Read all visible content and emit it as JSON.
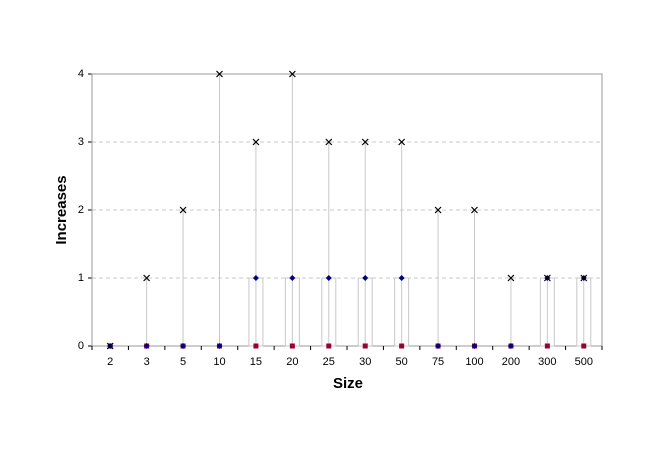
{
  "chart_data": {
    "type": "stock",
    "xlabel": "Size",
    "ylabel": "Increases",
    "categories": [
      "2",
      "3",
      "5",
      "10",
      "15",
      "20",
      "25",
      "30",
      "50",
      "75",
      "100",
      "200",
      "300",
      "500"
    ],
    "series": [
      {
        "color": "#000000",
        "marker": "x",
        "values": [
          0,
          1,
          2,
          4,
          3,
          4,
          3,
          3,
          3,
          2,
          2,
          1,
          1,
          1
        ]
      },
      {
        "color": "#000080",
        "marker": "diamond",
        "values": [
          0,
          0,
          0,
          0,
          1,
          1,
          1,
          1,
          1,
          0,
          0,
          0,
          1,
          1
        ]
      },
      {
        "color": "#990033",
        "marker": "square",
        "values": [
          0,
          0,
          0,
          0,
          0,
          0,
          0,
          0,
          0,
          0,
          0,
          0,
          0,
          0
        ]
      }
    ],
    "ylim": [
      0,
      4
    ],
    "yticks": [
      0,
      1,
      2,
      3,
      4
    ],
    "grid": true
  }
}
